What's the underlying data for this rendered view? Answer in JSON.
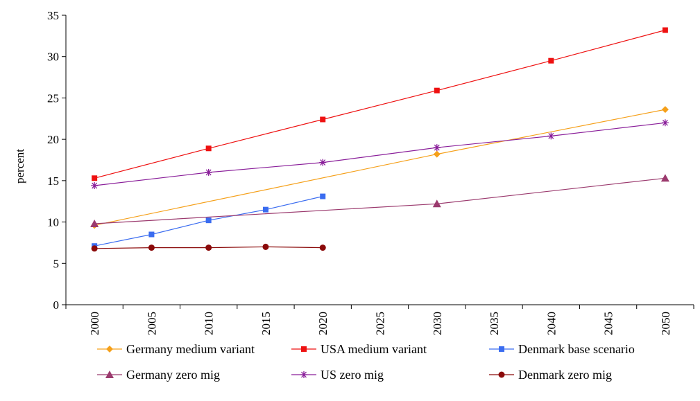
{
  "chart_data": {
    "type": "line",
    "title": "",
    "xlabel": "",
    "ylabel": "percent",
    "xlim": [
      2000,
      2050
    ],
    "ylim": [
      0,
      35
    ],
    "x_ticks": [
      "2000",
      "2005",
      "2010",
      "2015",
      "2020",
      "2025",
      "2030",
      "2035",
      "2040",
      "2045",
      "2050"
    ],
    "y_ticks": [
      "0",
      "5",
      "10",
      "15",
      "20",
      "25",
      "30",
      "35"
    ],
    "grid": false,
    "legend_position": "bottom",
    "series": [
      {
        "name": "Germany medium variant",
        "color": "#f5a01a",
        "marker": "diamond",
        "x": [
          2000,
          2030,
          2050
        ],
        "values": [
          9.6,
          18.2,
          23.6
        ]
      },
      {
        "name": "USA medium variant",
        "color": "#ee1111",
        "marker": "square",
        "x": [
          2000,
          2010,
          2020,
          2030,
          2040,
          2050
        ],
        "values": [
          15.3,
          18.9,
          22.4,
          25.9,
          29.5,
          33.2
        ]
      },
      {
        "name": "Denmark base scenario",
        "color": "#3a6cf0",
        "marker": "square",
        "x": [
          2000,
          2005,
          2010,
          2015,
          2020
        ],
        "values": [
          7.1,
          8.5,
          10.2,
          11.5,
          13.1
        ]
      },
      {
        "name": "Germany zero mig",
        "color": "#9b3a6e",
        "marker": "triangle",
        "x": [
          2000,
          2030,
          2050
        ],
        "values": [
          9.8,
          12.2,
          15.3
        ]
      },
      {
        "name": "US zero mig",
        "color": "#8a1f9a",
        "marker": "star",
        "x": [
          2000,
          2010,
          2020,
          2030,
          2040,
          2050
        ],
        "values": [
          14.4,
          16.0,
          17.2,
          19.0,
          20.4,
          22.0
        ]
      },
      {
        "name": "Denmark zero mig",
        "color": "#8b0a0a",
        "marker": "circle",
        "x": [
          2000,
          2005,
          2010,
          2015,
          2020
        ],
        "values": [
          6.8,
          6.9,
          6.9,
          7.0,
          6.9
        ]
      }
    ]
  }
}
